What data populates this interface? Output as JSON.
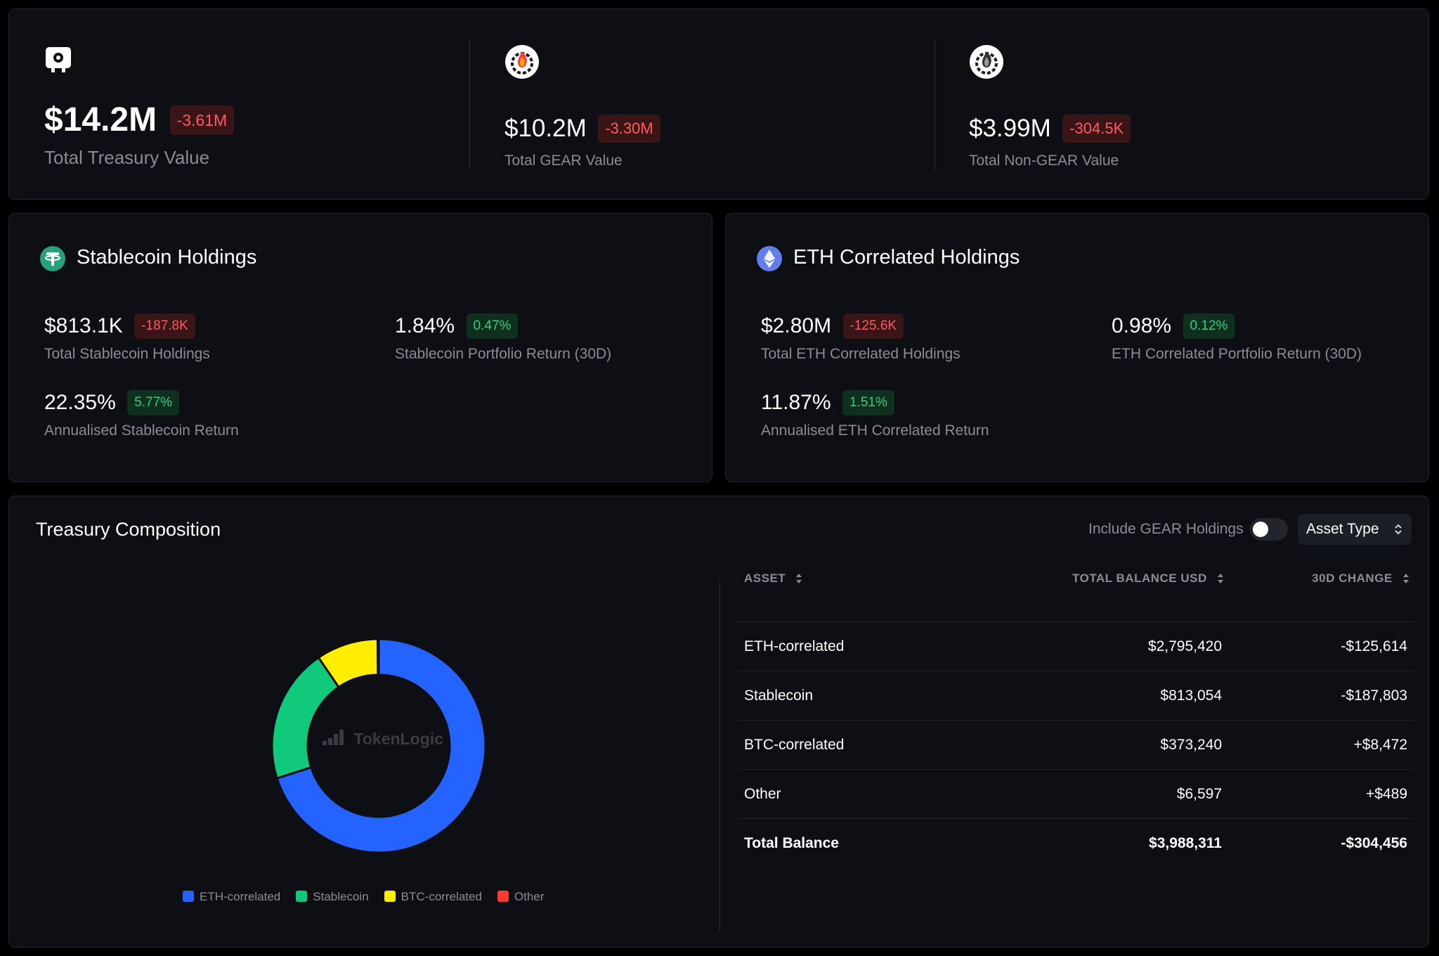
{
  "summary": {
    "treasury": {
      "value": "$14.2M",
      "change": "-3.61M",
      "label": "Total Treasury Value",
      "icon": "vault-icon"
    },
    "gear": {
      "value": "$10.2M",
      "change": "-3.30M",
      "label": "Total GEAR Value",
      "icon": "gear-flame-icon"
    },
    "non_gear": {
      "value": "$3.99M",
      "change": "-304.5K",
      "label": "Total Non-GEAR Value",
      "icon": "gear-flame-mono-icon"
    }
  },
  "stablecoin": {
    "title": "Stablecoin Holdings",
    "icon": "tether-icon",
    "total": {
      "value": "$813.1K",
      "change": "-187.8K",
      "label": "Total Stablecoin Holdings"
    },
    "return30": {
      "value": "1.84%",
      "change": "0.47%",
      "label": "Stablecoin Portfolio Return (30D)"
    },
    "annual": {
      "value": "22.35%",
      "change": "5.77%",
      "label": "Annualised Stablecoin Return"
    }
  },
  "eth": {
    "title": "ETH Correlated Holdings",
    "icon": "ethereum-icon",
    "total": {
      "value": "$2.80M",
      "change": "-125.6K",
      "label": "Total ETH Correlated Holdings"
    },
    "return30": {
      "value": "0.98%",
      "change": "0.12%",
      "label": "ETH Correlated Portfolio Return (30D)"
    },
    "annual": {
      "value": "11.87%",
      "change": "1.51%",
      "label": "Annualised ETH Correlated Return"
    }
  },
  "composition": {
    "title": "Treasury Composition",
    "toggle_label": "Include GEAR Holdings",
    "toggle_on": false,
    "select_value": "Asset Type",
    "watermark": "TokenLogic",
    "table": {
      "headers": {
        "asset": "ASSET",
        "balance": "TOTAL BALANCE USD",
        "change": "30D CHANGE"
      },
      "rows": [
        {
          "asset": "ETH-correlated",
          "balance": "$2,795,420",
          "change": "-$125,614"
        },
        {
          "asset": "Stablecoin",
          "balance": "$813,054",
          "change": "-$187,803"
        },
        {
          "asset": "BTC-correlated",
          "balance": "$373,240",
          "change": "+$8,472"
        },
        {
          "asset": "Other",
          "balance": "$6,597",
          "change": "+$489"
        }
      ],
      "total": {
        "asset": "Total Balance",
        "balance": "$3,988,311",
        "change": "-$304,456"
      }
    }
  },
  "chart_data": {
    "type": "pie",
    "title": "Treasury Composition",
    "categories": [
      "ETH-correlated",
      "Stablecoin",
      "BTC-correlated",
      "Other"
    ],
    "values": [
      2795420,
      813054,
      373240,
      6597
    ],
    "colors": [
      "#2563ff",
      "#10c97a",
      "#ffee00",
      "#ff3b30"
    ],
    "legend": "bottom"
  }
}
